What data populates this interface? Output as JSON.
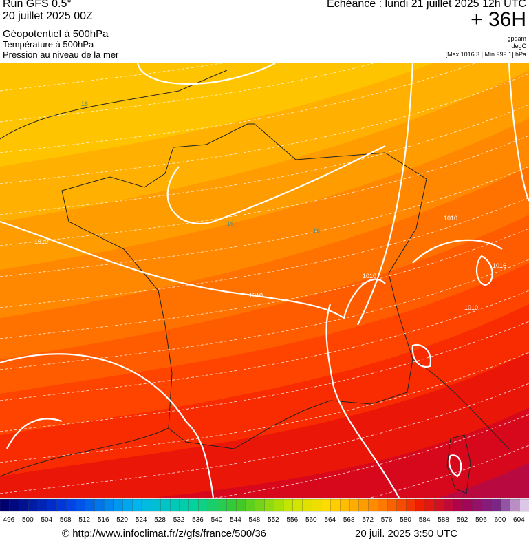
{
  "header": {
    "run": "Run GFS 0.5°",
    "date": "20 juillet 2025 00Z",
    "field_1": "Géopotentiel à 500hPa",
    "field_2": "Température à 500hPa",
    "field_3": "Pression au niveau de la mer",
    "valid_time": "Echéance : lundi 21 juillet 2025 12h UTC",
    "lead": "+ 36H",
    "unit_1": "gpdam",
    "unit_2": "degC",
    "pressure_range": "[Max 1016.3 | Min 999.1] hPa"
  },
  "map": {
    "labels": [
      "1010",
      "1010",
      "1010",
      "1010",
      "1016",
      "1010",
      "16",
      "16",
      "16"
    ]
  },
  "colorbar": {
    "labels": [
      496,
      500,
      504,
      508,
      512,
      516,
      520,
      524,
      528,
      532,
      536,
      540,
      544,
      548,
      552,
      556,
      560,
      564,
      568,
      572,
      576,
      580,
      584,
      588,
      592,
      596,
      600,
      604
    ]
  },
  "footer": {
    "credit": "© http://www.infoclimat.fr/z/gfs/france/500/36",
    "generated": "20 juil. 2025  3:50 UTC"
  }
}
